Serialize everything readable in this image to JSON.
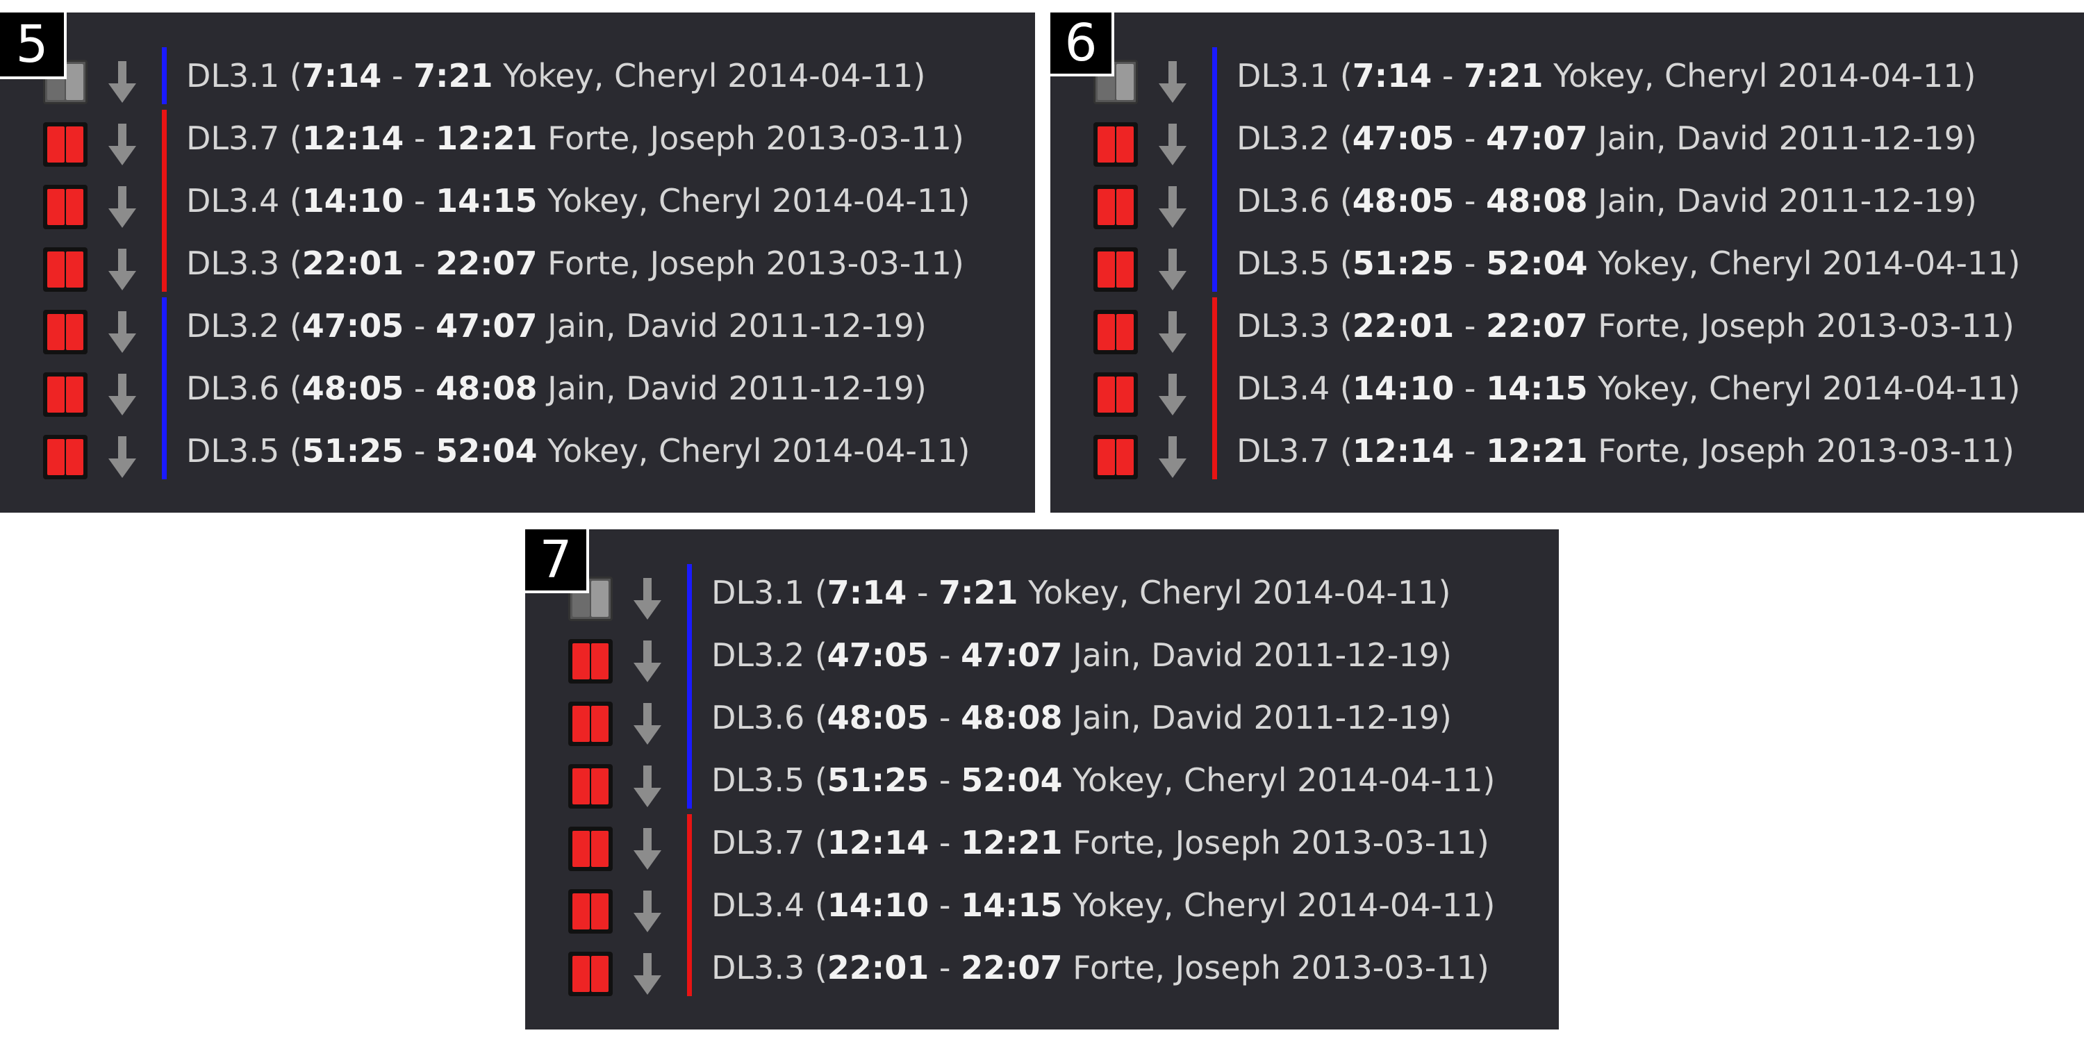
{
  "colors": {
    "panel_bg": "#2a2a30",
    "group_blue": "#1a1aff",
    "group_red": "#e81414",
    "control_red": "#ee2424",
    "control_grey": "#9a9a9a"
  },
  "icons": {
    "control": "track-control-icon",
    "down": "down-arrow-icon"
  },
  "panels": [
    {
      "number": "5",
      "rows": [
        {
          "id": "DL3.1",
          "open": "(",
          "start": "7:14",
          "sep": " - ",
          "end": "7:21",
          "rest": " Yokey, Cheryl 2014-04-11)",
          "state": "grey",
          "group": "blue"
        },
        {
          "id": "DL3.7",
          "open": "(",
          "start": "12:14",
          "sep": " - ",
          "end": "12:21",
          "rest": " Forte, Joseph 2013-03-11)",
          "state": "red",
          "group": "red"
        },
        {
          "id": "DL3.4",
          "open": "(",
          "start": "14:10",
          "sep": " - ",
          "end": "14:15",
          "rest": " Yokey, Cheryl 2014-04-11)",
          "state": "red",
          "group": "red"
        },
        {
          "id": "DL3.3",
          "open": "(",
          "start": "22:01",
          "sep": " - ",
          "end": "22:07",
          "rest": " Forte, Joseph 2013-03-11)",
          "state": "red",
          "group": "red"
        },
        {
          "id": "DL3.2",
          "open": "(",
          "start": "47:05",
          "sep": " - ",
          "end": "47:07",
          "rest": " Jain, David 2011-12-19)",
          "state": "red",
          "group": "blue"
        },
        {
          "id": "DL3.6",
          "open": "(",
          "start": "48:05",
          "sep": " - ",
          "end": "48:08",
          "rest": " Jain, David 2011-12-19)",
          "state": "red",
          "group": "blue"
        },
        {
          "id": "DL3.5",
          "open": "(",
          "start": "51:25",
          "sep": " - ",
          "end": "52:04",
          "rest": " Yokey, Cheryl 2014-04-11)",
          "state": "red",
          "group": "blue"
        }
      ]
    },
    {
      "number": "6",
      "rows": [
        {
          "id": "DL3.1",
          "open": "(",
          "start": "7:14",
          "sep": " - ",
          "end": "7:21",
          "rest": " Yokey, Cheryl 2014-04-11)",
          "state": "grey",
          "group": "blue"
        },
        {
          "id": "DL3.2",
          "open": "(",
          "start": "47:05",
          "sep": " - ",
          "end": "47:07",
          "rest": " Jain, David 2011-12-19)",
          "state": "red",
          "group": "blue"
        },
        {
          "id": "DL3.6",
          "open": "(",
          "start": "48:05",
          "sep": " - ",
          "end": "48:08",
          "rest": " Jain, David 2011-12-19)",
          "state": "red",
          "group": "blue"
        },
        {
          "id": "DL3.5",
          "open": "(",
          "start": "51:25",
          "sep": " - ",
          "end": "52:04",
          "rest": " Yokey, Cheryl 2014-04-11)",
          "state": "red",
          "group": "blue"
        },
        {
          "id": "DL3.3",
          "open": "(",
          "start": "22:01",
          "sep": " - ",
          "end": "22:07",
          "rest": " Forte, Joseph 2013-03-11)",
          "state": "red",
          "group": "red"
        },
        {
          "id": "DL3.4",
          "open": "(",
          "start": "14:10",
          "sep": " - ",
          "end": "14:15",
          "rest": " Yokey, Cheryl 2014-04-11)",
          "state": "red",
          "group": "red"
        },
        {
          "id": "DL3.7",
          "open": "(",
          "start": "12:14",
          "sep": " - ",
          "end": "12:21",
          "rest": " Forte, Joseph 2013-03-11)",
          "state": "red",
          "group": "red"
        }
      ]
    },
    {
      "number": "7",
      "rows": [
        {
          "id": "DL3.1",
          "open": "(",
          "start": "7:14",
          "sep": " - ",
          "end": "7:21",
          "rest": " Yokey, Cheryl 2014-04-11)",
          "state": "grey",
          "group": "blue"
        },
        {
          "id": "DL3.2",
          "open": "(",
          "start": "47:05",
          "sep": " - ",
          "end": "47:07",
          "rest": " Jain, David 2011-12-19)",
          "state": "red",
          "group": "blue"
        },
        {
          "id": "DL3.6",
          "open": "(",
          "start": "48:05",
          "sep": " - ",
          "end": "48:08",
          "rest": " Jain, David 2011-12-19)",
          "state": "red",
          "group": "blue"
        },
        {
          "id": "DL3.5",
          "open": "(",
          "start": "51:25",
          "sep": " - ",
          "end": "52:04",
          "rest": " Yokey, Cheryl 2014-04-11)",
          "state": "red",
          "group": "blue"
        },
        {
          "id": "DL3.7",
          "open": "(",
          "start": "12:14",
          "sep": " - ",
          "end": "12:21",
          "rest": " Forte, Joseph 2013-03-11)",
          "state": "red",
          "group": "red"
        },
        {
          "id": "DL3.4",
          "open": "(",
          "start": "14:10",
          "sep": " - ",
          "end": "14:15",
          "rest": " Yokey, Cheryl 2014-04-11)",
          "state": "red",
          "group": "red"
        },
        {
          "id": "DL3.3",
          "open": "(",
          "start": "22:01",
          "sep": " - ",
          "end": "22:07",
          "rest": " Forte, Joseph 2013-03-11)",
          "state": "red",
          "group": "red"
        }
      ]
    }
  ]
}
